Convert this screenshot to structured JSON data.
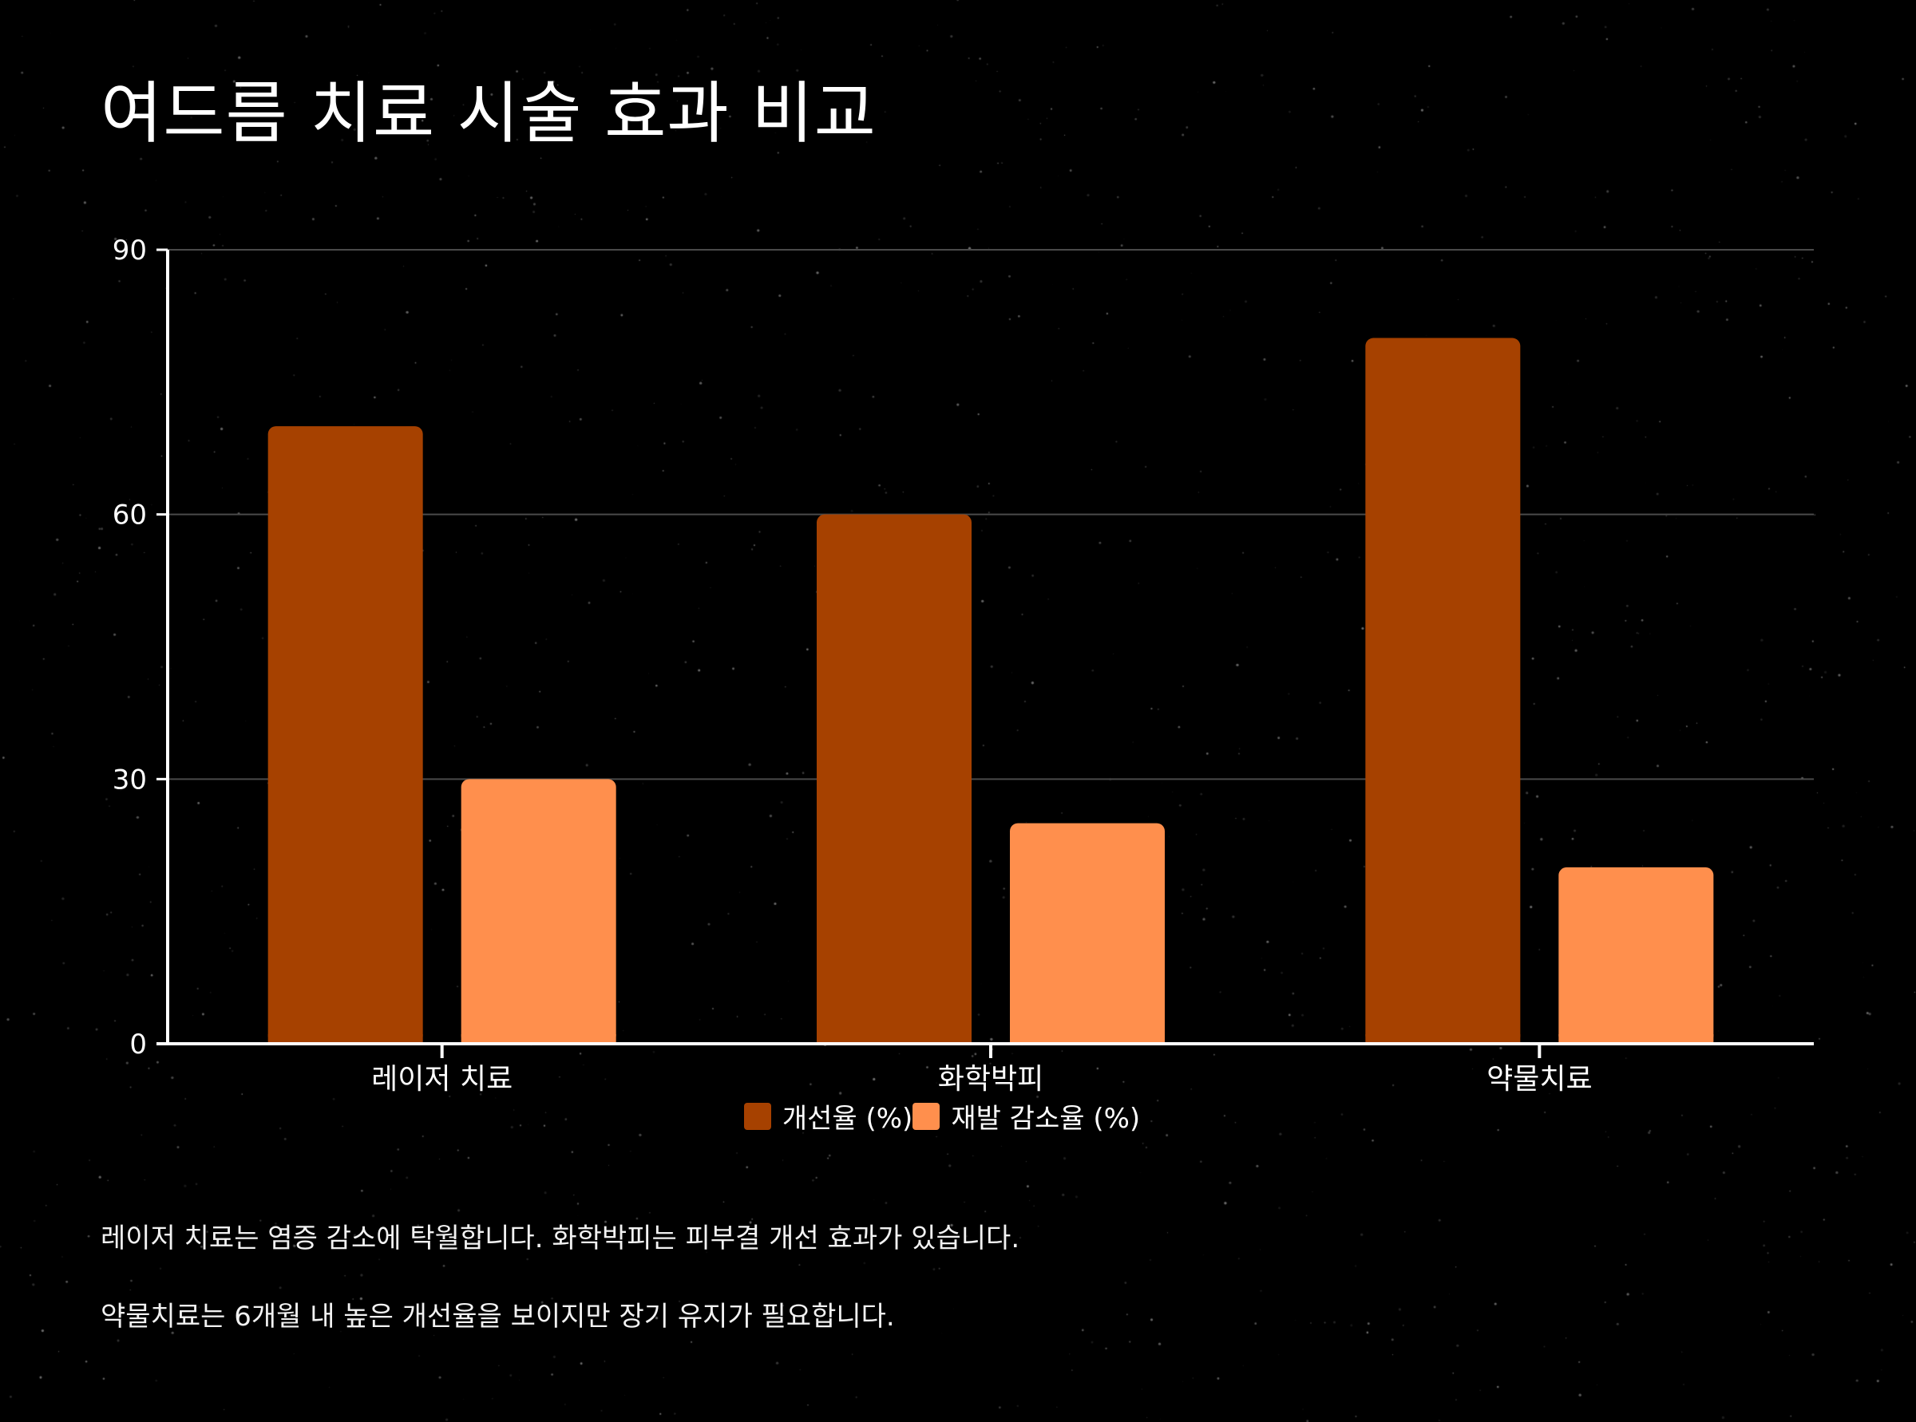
{
  "colors": {
    "background": "#000000",
    "improvement": "#a64100",
    "relapse": "#ff8f4d",
    "axis": "#ffffff",
    "grid": "#4a4a4a"
  },
  "title": "여드름 치료 시술 효과 비교",
  "captions": {
    "line1": "레이저 치료는 염증 감소에 탁월합니다. 화학박피는 피부결 개선 효과가 있습니다.",
    "line2": "약물치료는 6개월 내 높은 개선율을 보이지만 장기 유지가 필요합니다."
  },
  "legend": [
    {
      "label": "개선율 (%)",
      "color": "#a64100"
    },
    {
      "label": "재발 감소율 (%)",
      "color": "#ff8f4d"
    }
  ],
  "chart_data": {
    "type": "bar",
    "categories": [
      "레이저 치료",
      "화학박피",
      "약물치료"
    ],
    "series": [
      {
        "name": "개선율 (%)",
        "values": [
          70,
          60,
          80
        ]
      },
      {
        "name": "재발 감소율 (%)",
        "values": [
          30,
          25,
          20
        ]
      }
    ],
    "title": "여드름 치료 시술 효과 비교",
    "xlabel": "",
    "ylabel": "",
    "ylim": [
      0,
      90
    ],
    "yticks": [
      0,
      30,
      60,
      90
    ],
    "grid": true,
    "legend_position": "bottom-center"
  }
}
